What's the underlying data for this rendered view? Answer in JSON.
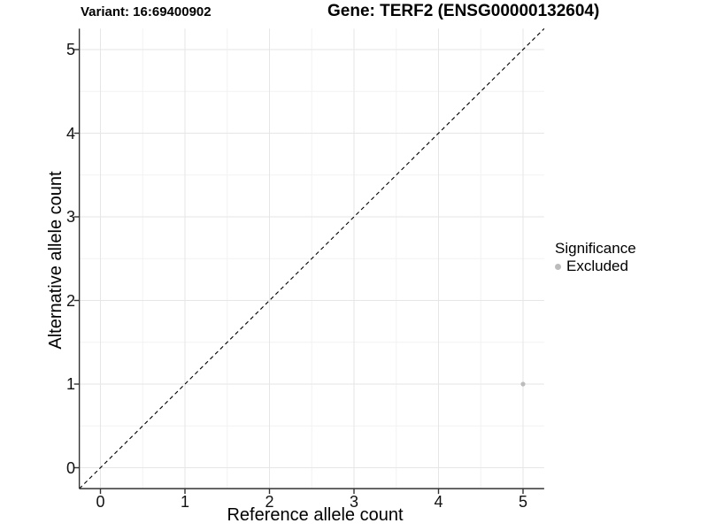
{
  "chart_data": {
    "type": "scatter",
    "title_left": "Variant: 16:69400902",
    "title_right": "Gene: TERF2 (ENSG00000132604)",
    "xlabel": "Reference allele count",
    "ylabel": "Alternative allele count",
    "xlim": [
      -0.25,
      5.25
    ],
    "ylim": [
      -0.25,
      5.25
    ],
    "x_ticks": [
      "0",
      "1",
      "2",
      "3",
      "4",
      "5"
    ],
    "y_ticks": [
      "0",
      "1",
      "2",
      "3",
      "4",
      "5"
    ],
    "grid": "major+minor",
    "points": [
      {
        "x": 5,
        "y": 1,
        "group": "Excluded"
      }
    ],
    "identity_line": {
      "style": "dashed",
      "note": "y = x reference line across full panel"
    },
    "legend": {
      "title": "Significance",
      "position": "right",
      "items": [
        {
          "label": "Excluded",
          "color": "#bcbcbc"
        }
      ]
    },
    "colors": {
      "point": "#bcbcbc",
      "grid_major": "#e6e6e6",
      "grid_minor": "#f2f2f2",
      "axis": "#333333",
      "dashed_line": "#000000",
      "background": "#ffffff",
      "tick_text": "#111111"
    }
  }
}
